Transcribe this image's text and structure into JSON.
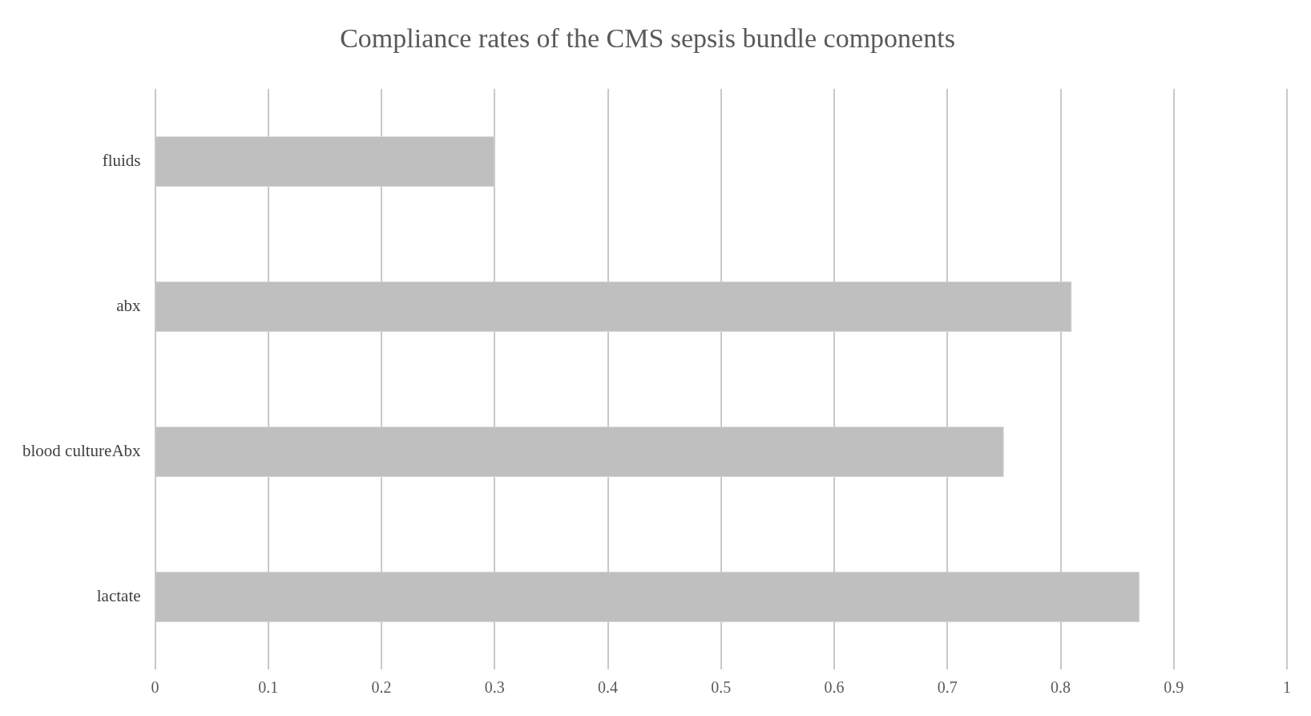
{
  "chart_data": {
    "type": "bar",
    "orientation": "horizontal",
    "title": "Compliance rates of the CMS sepsis bundle components",
    "categories": [
      "fluids",
      "abx",
      "blood cultureAbx",
      "lactate"
    ],
    "values": [
      0.3,
      0.81,
      0.75,
      0.87
    ],
    "color": "#bfbfbf",
    "xlim": [
      0,
      1
    ],
    "xticks": [
      0,
      0.1,
      0.2,
      0.3,
      0.4,
      0.5,
      0.6,
      0.7,
      0.8,
      0.9,
      1
    ],
    "grid": "x",
    "legend": false
  }
}
